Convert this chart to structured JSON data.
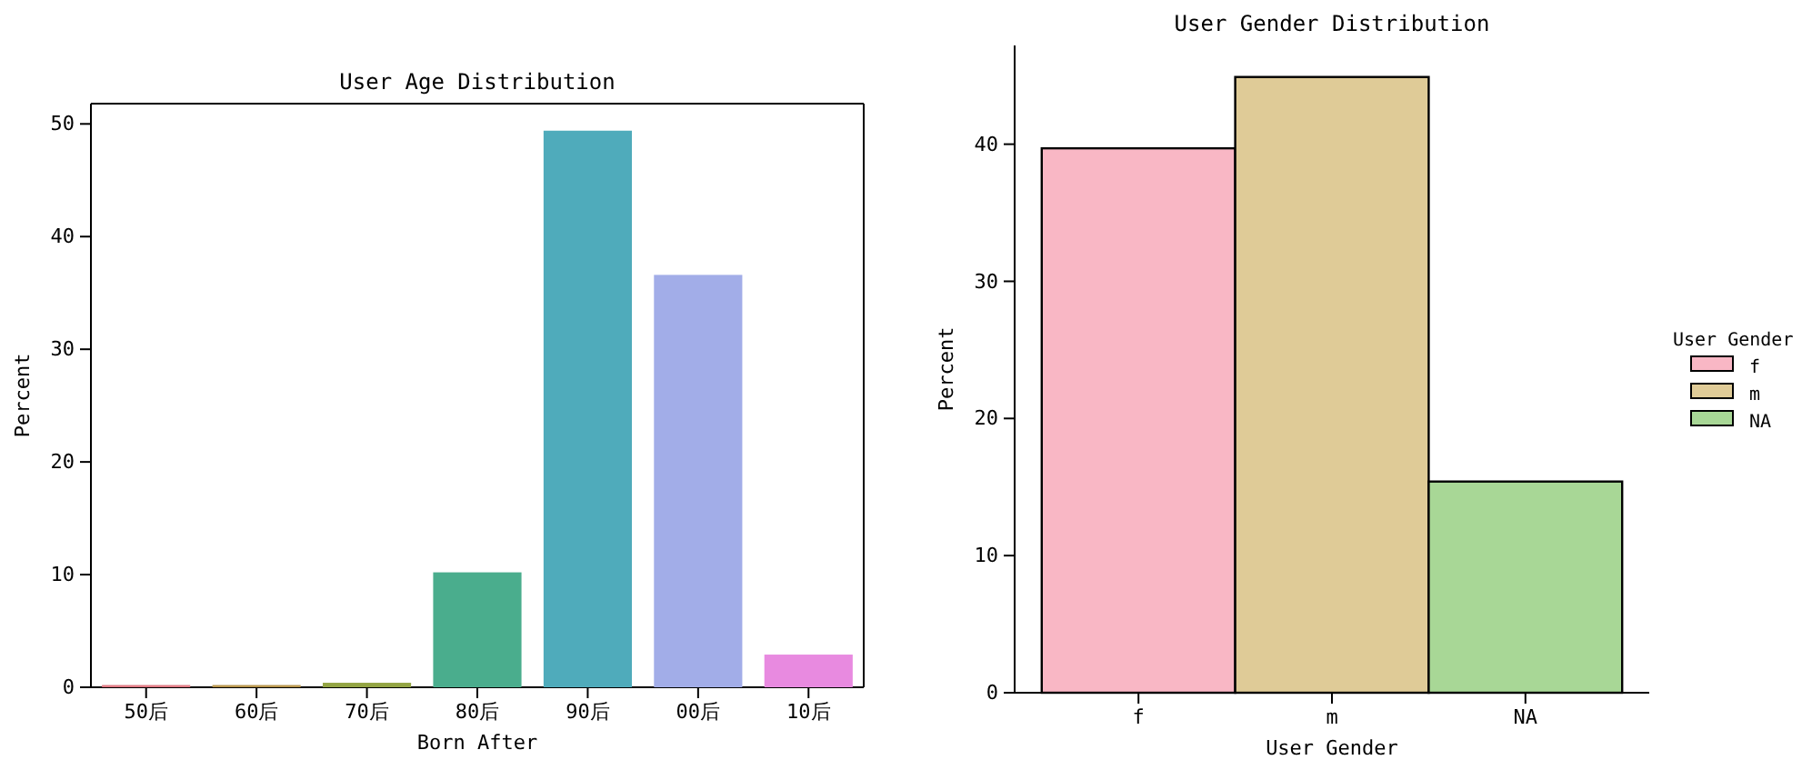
{
  "chart_data": [
    {
      "type": "bar",
      "title": "User Age Distribution",
      "xlabel": "Born After",
      "ylabel": "Percent",
      "categories": [
        "50后",
        "60后",
        "70后",
        "80后",
        "90后",
        "00后",
        "10后"
      ],
      "values": [
        0.2,
        0.2,
        0.4,
        10.2,
        49.4,
        36.6,
        2.9
      ],
      "colors": [
        "#e07a84",
        "#b8964e",
        "#93a443",
        "#4aad8d",
        "#4fabbb",
        "#a2ade8",
        "#e88ae0"
      ],
      "ylim": [
        0,
        51.8
      ],
      "yticks": [
        0,
        10,
        20,
        30,
        40,
        50
      ]
    },
    {
      "type": "bar",
      "title": "User Gender Distribution",
      "xlabel": "User Gender",
      "ylabel": "Percent",
      "categories": [
        "f",
        "m",
        "NA"
      ],
      "series": [
        {
          "name": "f",
          "color": "#f9b7c5",
          "values": [
            39.7,
            null,
            null
          ]
        },
        {
          "name": "m",
          "color": "#dfcb97",
          "values": [
            null,
            44.9,
            null
          ]
        },
        {
          "name": "NA",
          "color": "#a8d796",
          "values": [
            null,
            null,
            15.4
          ]
        }
      ],
      "ylim": [
        0,
        47.2
      ],
      "yticks": [
        0,
        10,
        20,
        30,
        40
      ],
      "legend": "right",
      "legend_title": "User Gender"
    }
  ]
}
